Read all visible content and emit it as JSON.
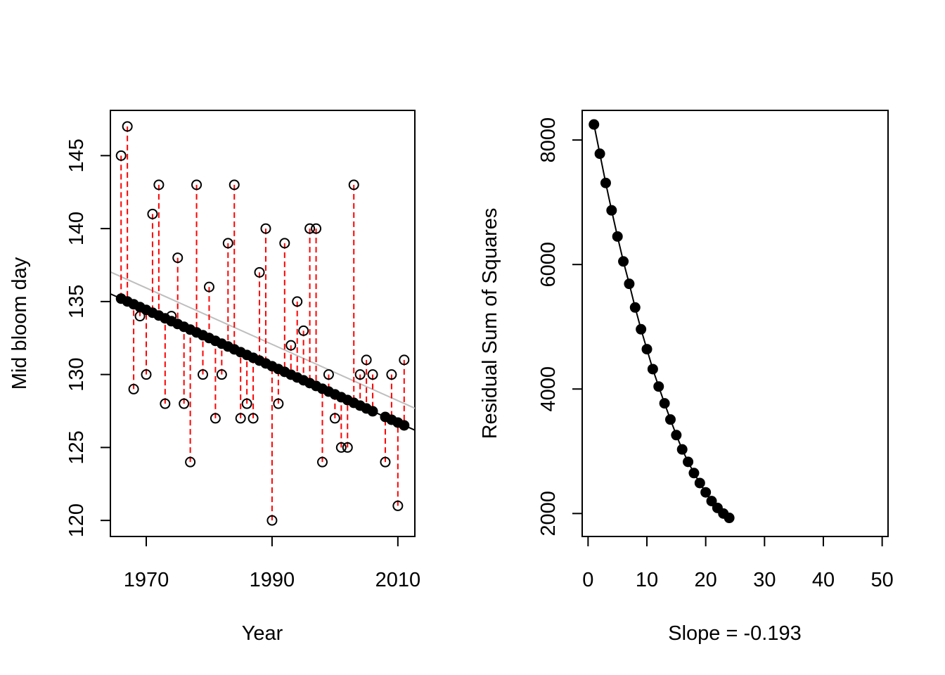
{
  "chart_data": [
    {
      "type": "scatter",
      "xlabel": "Year",
      "ylabel": "Mid bloom day",
      "xlim": [
        1964.3,
        2012.7
      ],
      "ylim": [
        118.9,
        148.1
      ],
      "x_ticks": [
        1970,
        1990,
        2010
      ],
      "y_ticks": [
        120,
        125,
        130,
        135,
        140,
        145
      ],
      "observed_points": {
        "x": [
          1966,
          1967,
          1968,
          1969,
          1970,
          1971,
          1972,
          1973,
          1974,
          1975,
          1976,
          1977,
          1978,
          1979,
          1980,
          1981,
          1982,
          1983,
          1984,
          1985,
          1986,
          1987,
          1988,
          1989,
          1990,
          1991,
          1992,
          1993,
          1994,
          1995,
          1996,
          1997,
          1998,
          1999,
          2000,
          2001,
          2002,
          2003,
          2004,
          2005,
          2006,
          2008,
          2009,
          2010,
          2011
        ],
        "y": [
          145,
          147,
          129,
          134,
          130,
          141,
          143,
          128,
          134,
          138,
          128,
          124,
          143,
          130,
          136,
          127,
          130,
          139,
          143,
          127,
          128,
          127,
          137,
          140,
          120,
          128,
          139,
          132,
          135,
          133,
          140,
          140,
          124,
          130,
          127,
          125,
          125,
          143,
          130,
          131,
          130,
          124,
          130,
          121,
          131
        ]
      },
      "fitted_line": {
        "intercept_at_1966": 135.2,
        "slope": -0.193,
        "color": "#000000"
      },
      "candidate_line": {
        "intercept_at_1966": 136.7,
        "slope": -0.193,
        "color": "#bebebe"
      },
      "residual_color": "#ff0000"
    },
    {
      "type": "line",
      "xlabel": "Slope = -0.193",
      "ylabel": "Residual Sum of Squares",
      "xlim": [
        -1.0,
        51.0
      ],
      "ylim": [
        1631,
        8476
      ],
      "x_ticks": [
        0,
        10,
        20,
        30,
        40,
        50
      ],
      "y_ticks": [
        2000,
        4000,
        6000,
        8000
      ],
      "x": [
        1,
        2,
        3,
        4,
        5,
        6,
        7,
        8,
        9,
        10,
        11,
        12,
        13,
        14,
        15,
        16,
        17,
        18,
        19,
        20,
        21,
        22,
        23,
        24
      ],
      "y": [
        8250,
        7780,
        7310,
        6870,
        6450,
        6050,
        5690,
        5310,
        4960,
        4640,
        4320,
        4040,
        3770,
        3510,
        3260,
        3030,
        2830,
        2650,
        2490,
        2340,
        2200,
        2090,
        2000,
        1930
      ],
      "color": "#000000"
    }
  ]
}
